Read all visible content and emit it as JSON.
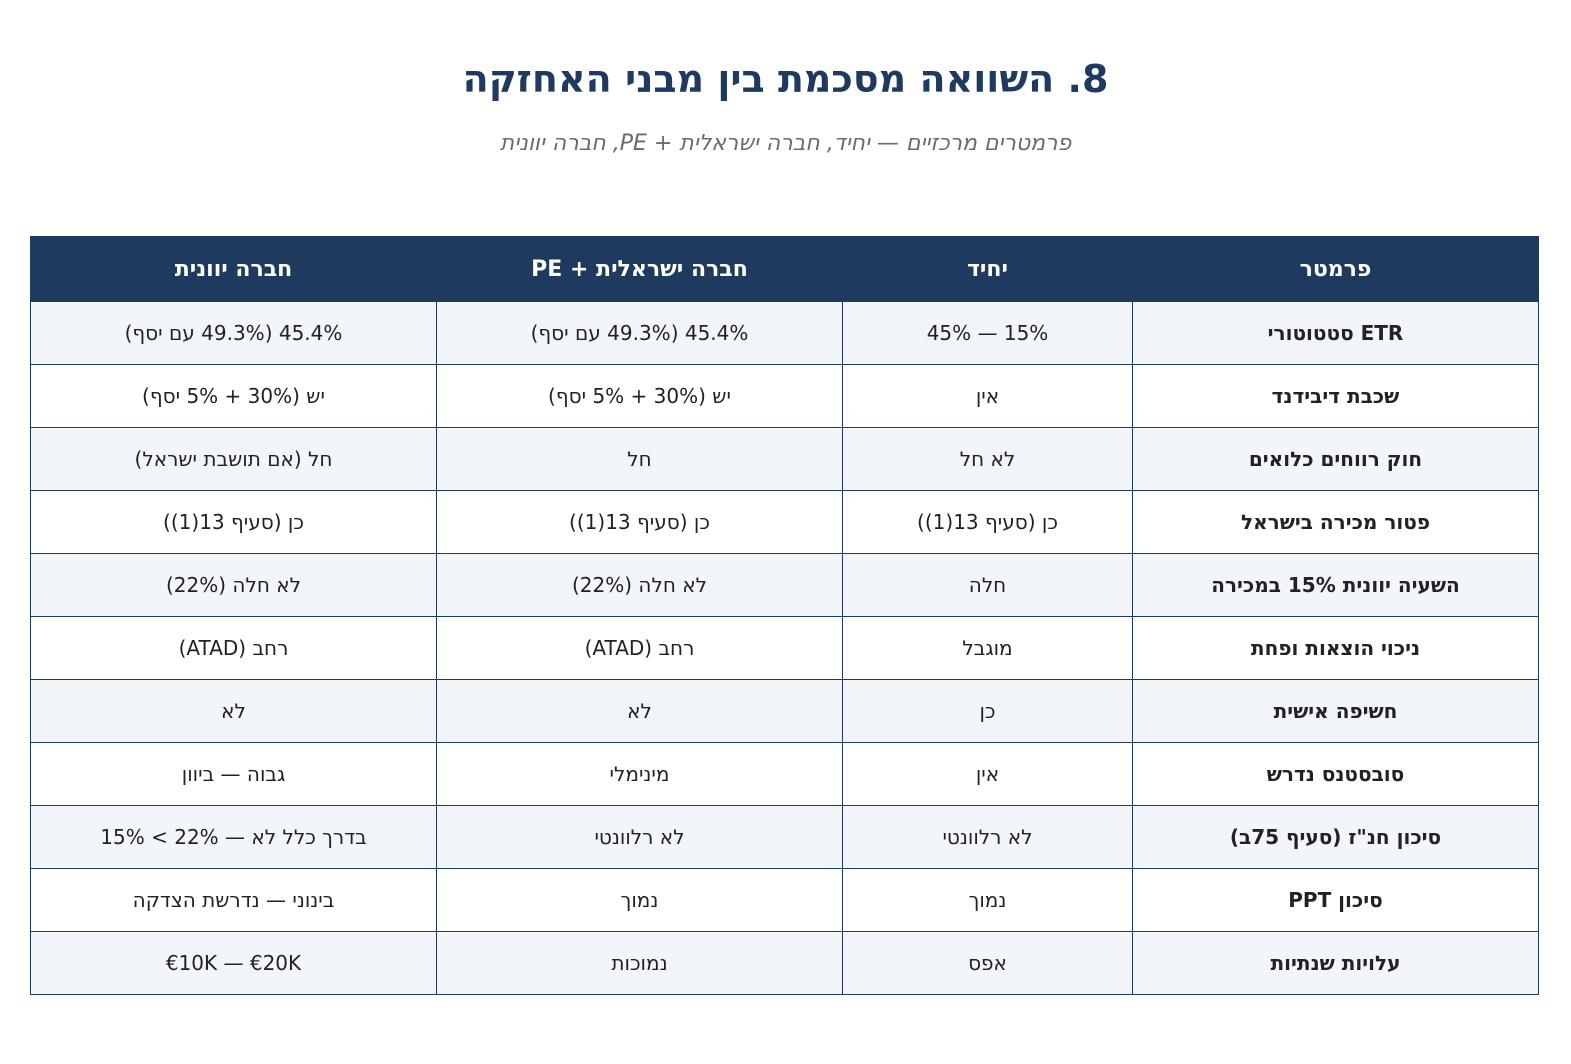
{
  "header": {
    "title": "8. השוואה מסכמת בין מבני האחזקה",
    "subtitle": "פרמטרים מרכזיים — יחיד, חברה ישראלית + PE, חברה יוונית"
  },
  "table": {
    "columns": [
      "פרמטר",
      "יחיד",
      "חברה ישראלית + PE",
      "חברה יוונית"
    ],
    "rows": [
      [
        "ETR סטטוטורי",
        "15% — 45%",
        "45.4% (49.3% עם יסף)",
        "45.4% (49.3% עם יסף)"
      ],
      [
        "שכבת דיבידנד",
        "אין",
        "יש (30% + 5% יסף)",
        "יש (30% + 5% יסף)"
      ],
      [
        "חוק רווחים כלואים",
        "לא חל",
        "חל",
        "חל (אם תושבת ישראל)"
      ],
      [
        "פטור מכירה בישראל",
        "כן (סעיף 13(1))",
        "כן (סעיף 13(1))",
        "כן (סעיף 13(1))"
      ],
      [
        "השעיה יוונית 15% במכירה",
        "חלה",
        "לא חלה (22%)",
        "לא חלה (22%)"
      ],
      [
        "ניכוי הוצאות ופחת",
        "מוגבל",
        "רחב (ATAD)",
        "רחב (ATAD)"
      ],
      [
        "חשיפה אישית",
        "כן",
        "לא",
        "לא"
      ],
      [
        "סובסטנס נדרש",
        "אין",
        "מינימלי",
        "גבוה — ביוון"
      ],
      [
        "סיכון חנ\"ז (סעיף 75ב)",
        "לא רלוונטי",
        "לא רלוונטי",
        "בדרך כלל לא — 22% > 15%"
      ],
      [
        "סיכון PPT",
        "נמוך",
        "נמוך",
        "בינוני — נדרשת הצדקה"
      ],
      [
        "עלויות שנתיות",
        "אפס",
        "נמוכות",
        "€10K — €20K"
      ]
    ]
  }
}
